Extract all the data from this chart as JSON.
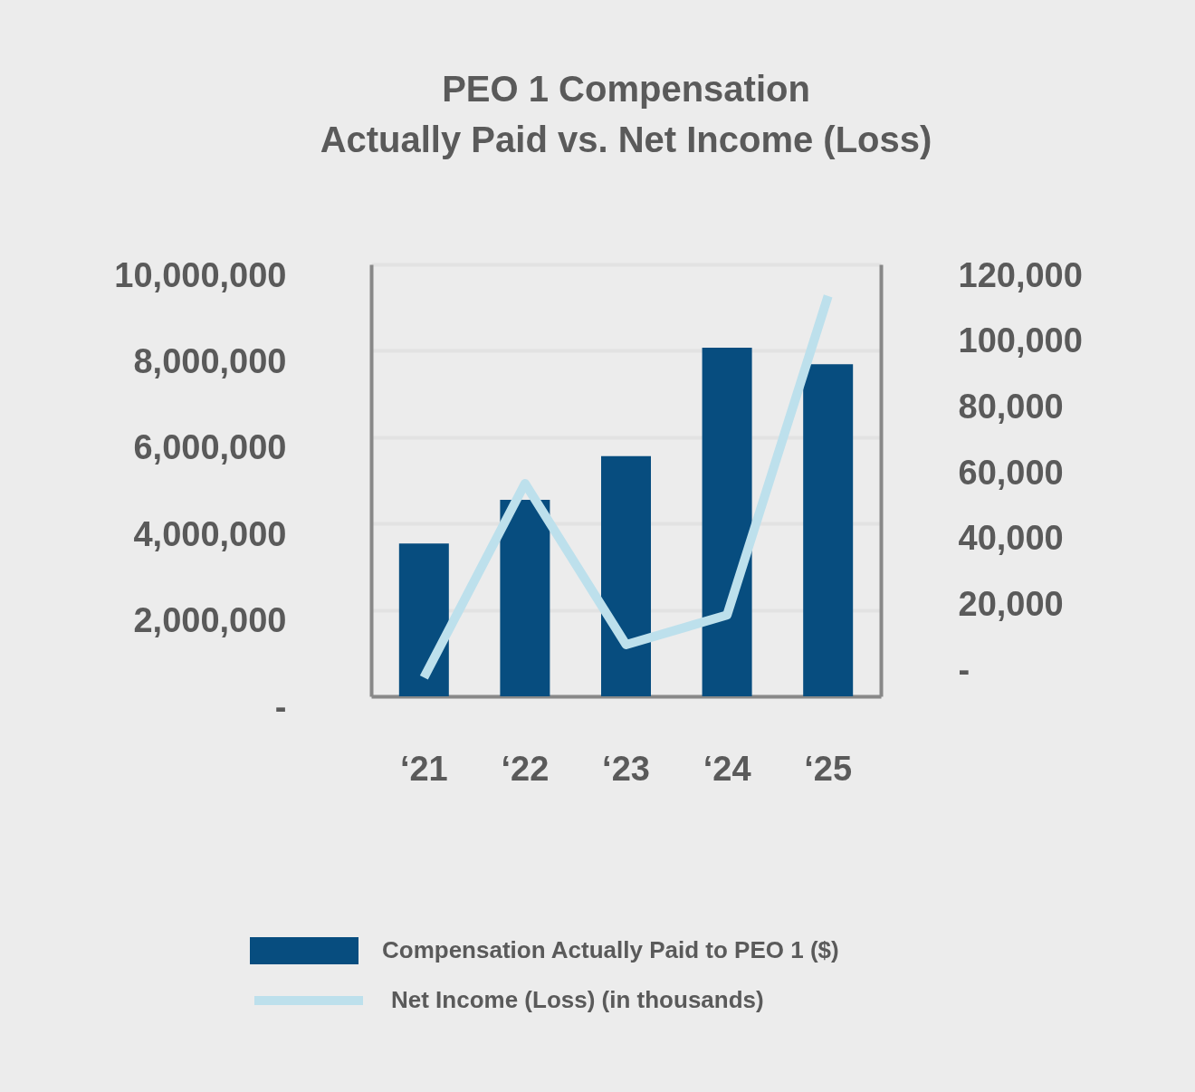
{
  "chart_data": {
    "type": "bar",
    "title": "PEO 1 Compensation\nActually Paid vs. Net Income (Loss)",
    "categories": [
      "‘21",
      "‘22",
      "‘23",
      "‘24",
      "‘25"
    ],
    "series": [
      {
        "name": "Compensation Actually Paid to PEO 1 ($)",
        "color": "#074d7f",
        "values": [
          3540000,
          4550000,
          5560000,
          8070000,
          7690000
        ]
      },
      {
        "name": "Net Income (Loss) (in thousands)",
        "type": "line",
        "axis": "y2",
        "color": "#bde0ec",
        "values": [
          -2000,
          57000,
          8000,
          17000,
          114000
        ]
      }
    ],
    "ylim": [
      0,
      10000000
    ],
    "yticks": [
      {
        "value": 0,
        "label": "-"
      },
      {
        "value": 2000000,
        "label": "2,000,000"
      },
      {
        "value": 4000000,
        "label": "4,000,000"
      },
      {
        "value": 6000000,
        "label": "6,000,000"
      },
      {
        "value": 8000000,
        "label": "8,000,000"
      },
      {
        "value": 10000000,
        "label": "10,000,000"
      }
    ],
    "y2lim": [
      -7700,
      123600
    ],
    "y2ticks": [
      {
        "value": 0,
        "label": "-"
      },
      {
        "value": 20000,
        "label": "20,000"
      },
      {
        "value": 40000,
        "label": "40,000"
      },
      {
        "value": 60000,
        "label": "60,000"
      },
      {
        "value": 80000,
        "label": "80,000"
      },
      {
        "value": 100000,
        "label": "100,000"
      },
      {
        "value": 120000,
        "label": "120,000"
      }
    ],
    "grid": "y",
    "legend": "bottom"
  }
}
